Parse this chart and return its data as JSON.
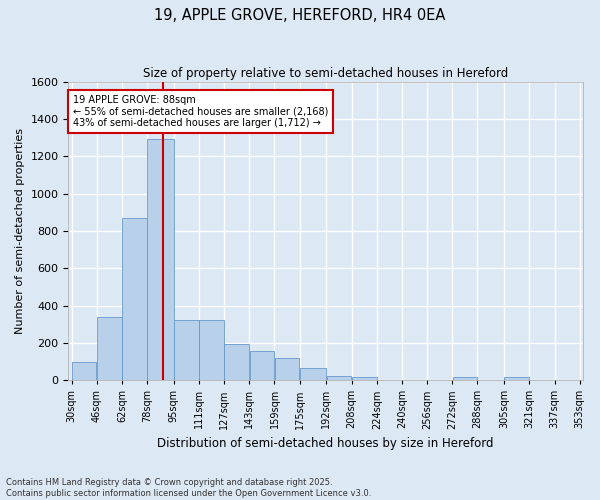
{
  "title1": "19, APPLE GROVE, HEREFORD, HR4 0EA",
  "title2": "Size of property relative to semi-detached houses in Hereford",
  "xlabel": "Distribution of semi-detached houses by size in Hereford",
  "ylabel": "Number of semi-detached properties",
  "annotation_line1": "19 APPLE GROVE: 88sqm",
  "annotation_line2": "← 55% of semi-detached houses are smaller (2,168)",
  "annotation_line3": "43% of semi-detached houses are larger (1,712) →",
  "footnote1": "Contains HM Land Registry data © Crown copyright and database right 2025.",
  "footnote2": "Contains public sector information licensed under the Open Government Licence v3.0.",
  "bins": [
    30,
    46,
    62,
    78,
    95,
    111,
    127,
    143,
    159,
    175,
    192,
    208,
    224,
    240,
    256,
    272,
    288,
    305,
    321,
    337,
    353
  ],
  "bin_labels": [
    "30sqm",
    "46sqm",
    "62sqm",
    "78sqm",
    "95sqm",
    "111sqm",
    "127sqm",
    "143sqm",
    "159sqm",
    "175sqm",
    "192sqm",
    "208sqm",
    "224sqm",
    "240sqm",
    "256sqm",
    "272sqm",
    "288sqm",
    "305sqm",
    "321sqm",
    "337sqm",
    "353sqm"
  ],
  "counts": [
    95,
    340,
    870,
    1290,
    320,
    320,
    195,
    155,
    120,
    65,
    20,
    15,
    0,
    0,
    0,
    15,
    0,
    15,
    0,
    0
  ],
  "bar_color": "#b8d0ea",
  "bar_edge_color": "#6699cc",
  "property_value": 88,
  "vline_color": "#cc0000",
  "ylim": [
    0,
    1600
  ],
  "yticks": [
    0,
    200,
    400,
    600,
    800,
    1000,
    1200,
    1400,
    1600
  ],
  "background_color": "#dde8f5",
  "grid_color": "#ffffff",
  "annotation_box_color": "#ffffff",
  "annotation_box_edge": "#cc0000",
  "fig_width": 6.0,
  "fig_height": 5.0
}
